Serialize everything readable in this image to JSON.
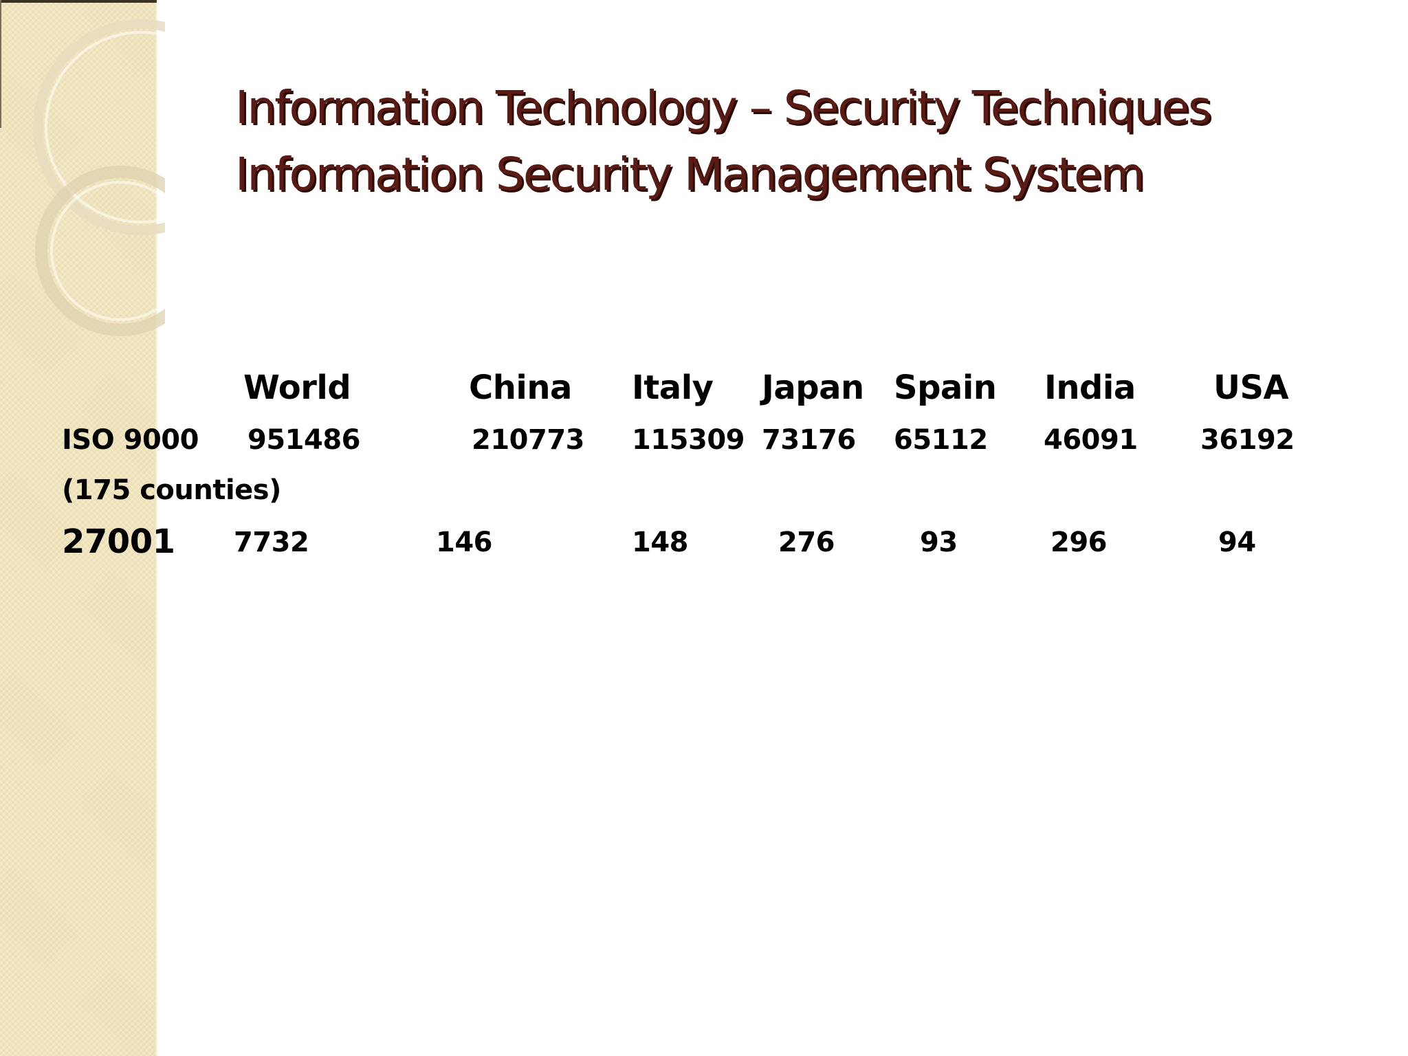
{
  "title": {
    "line1": "Information Technology – Security Techniques",
    "line2": "Information Security Management System"
  },
  "table": {
    "columns": [
      "World",
      "China",
      "Italy",
      "Japan",
      "Spain",
      "India",
      "USA"
    ],
    "rows": [
      {
        "label": "ISO 9000",
        "sublabel": "(175 counties)",
        "values": [
          "951486",
          "210773",
          "115309",
          "73176",
          "65112",
          "46091",
          "36192"
        ]
      },
      {
        "label": "27001",
        "values": [
          "7732",
          "146",
          "148",
          "276",
          "93",
          "296",
          "94"
        ]
      }
    ]
  },
  "theme": {
    "band_color": "#f0e4bd",
    "title_color": "#5a1b14"
  }
}
